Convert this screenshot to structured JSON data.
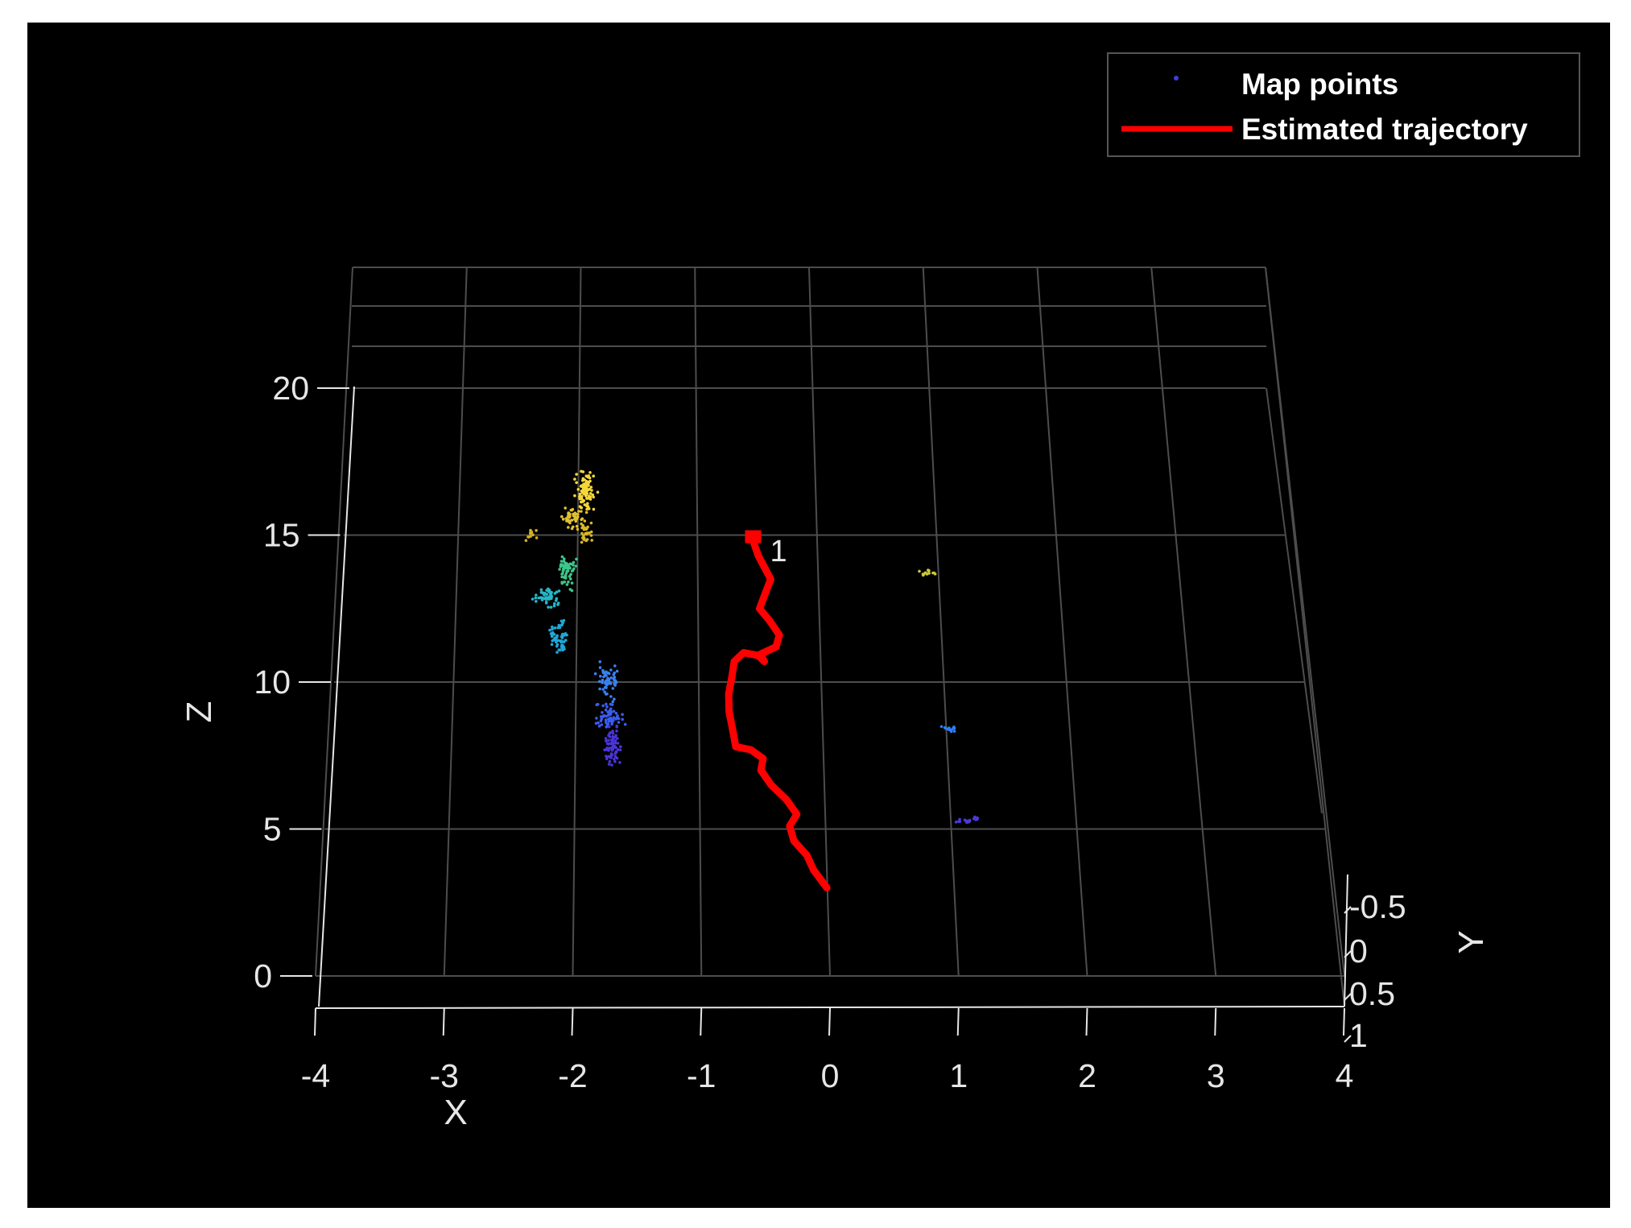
{
  "figure": {
    "background": "#000000",
    "outer_background": "#ffffff",
    "grid_color": "#4d4d4d",
    "axis_color": "#e6e6e6"
  },
  "chart_data": {
    "type": "scatter",
    "view": "3d",
    "title": "",
    "xlabel": "X",
    "ylabel": "Y",
    "zlabel": "Z",
    "xlim": [
      -4,
      4
    ],
    "ylim": [
      -0.75,
      1
    ],
    "zlim": [
      0,
      23
    ],
    "x_ticks": [
      -4,
      -3,
      -2,
      -1,
      0,
      1,
      2,
      3,
      4
    ],
    "y_ticks": [
      "-0.5",
      "0",
      "0.5",
      "1"
    ],
    "z_ticks": [
      0,
      5,
      10,
      15,
      20
    ],
    "grid": true,
    "legend": {
      "placement": "top-right",
      "entries": [
        {
          "label": "Map points",
          "style": "marker",
          "color": "#3d3de0"
        },
        {
          "label": "Estimated trajectory",
          "style": "line",
          "color": "#ff0000"
        }
      ]
    },
    "colormap": "parula",
    "annotations": [
      {
        "text": "1",
        "x": -0.42,
        "z": 14.6,
        "color": "#ff0000"
      }
    ],
    "series": [
      {
        "name": "Estimated trajectory",
        "type": "line",
        "color": "#ff0000",
        "points": [
          {
            "x": 0.0,
            "z": 3.0
          },
          {
            "x": -0.1,
            "z": 3.6
          },
          {
            "x": -0.15,
            "z": 4.1
          },
          {
            "x": -0.25,
            "z": 4.6
          },
          {
            "x": -0.28,
            "z": 5.1
          },
          {
            "x": -0.22,
            "z": 5.5
          },
          {
            "x": -0.3,
            "z": 6.0
          },
          {
            "x": -0.42,
            "z": 6.5
          },
          {
            "x": -0.5,
            "z": 7.0
          },
          {
            "x": -0.48,
            "z": 7.4
          },
          {
            "x": -0.58,
            "z": 7.7
          },
          {
            "x": -0.7,
            "z": 7.8
          },
          {
            "x": -0.72,
            "z": 8.3
          },
          {
            "x": -0.75,
            "z": 9.0
          },
          {
            "x": -0.75,
            "z": 9.6
          },
          {
            "x": -0.72,
            "z": 10.2
          },
          {
            "x": -0.7,
            "z": 10.7
          },
          {
            "x": -0.62,
            "z": 11.0
          },
          {
            "x": -0.5,
            "z": 10.9
          },
          {
            "x": -0.45,
            "z": 10.7
          },
          {
            "x": -0.48,
            "z": 10.95
          },
          {
            "x": -0.35,
            "z": 11.2
          },
          {
            "x": -0.32,
            "z": 11.6
          },
          {
            "x": -0.4,
            "z": 12.1
          },
          {
            "x": -0.48,
            "z": 12.5
          },
          {
            "x": -0.43,
            "z": 13.0
          },
          {
            "x": -0.38,
            "z": 13.5
          },
          {
            "x": -0.43,
            "z": 13.9
          },
          {
            "x": -0.48,
            "z": 14.3
          },
          {
            "x": -0.52,
            "z": 14.8
          },
          {
            "x": -0.52,
            "z": 15.0
          }
        ]
      },
      {
        "name": "Map points",
        "type": "scatter",
        "clusters": [
          {
            "x": -1.95,
            "z": 16.5,
            "dx": 0.12,
            "dz": 0.9,
            "n": 90,
            "color": "#f5d83a"
          },
          {
            "x": -2.05,
            "z": 15.6,
            "dx": 0.15,
            "dz": 0.4,
            "n": 50,
            "color": "#e0c030"
          },
          {
            "x": -1.95,
            "z": 15.1,
            "dx": 0.08,
            "dz": 0.5,
            "n": 30,
            "color": "#d8b828"
          },
          {
            "x": -2.4,
            "z": 15.0,
            "dx": 0.08,
            "dz": 0.3,
            "n": 12,
            "color": "#d0b020"
          },
          {
            "x": -2.1,
            "z": 13.8,
            "dx": 0.1,
            "dz": 0.8,
            "n": 60,
            "color": "#3ec58a"
          },
          {
            "x": -2.25,
            "z": 12.9,
            "dx": 0.15,
            "dz": 0.5,
            "n": 50,
            "color": "#25b6c9"
          },
          {
            "x": -2.15,
            "z": 11.5,
            "dx": 0.1,
            "dz": 0.8,
            "n": 60,
            "color": "#1fa7d8"
          },
          {
            "x": -1.75,
            "z": 10.0,
            "dx": 0.12,
            "dz": 0.8,
            "n": 60,
            "color": "#3a80f0"
          },
          {
            "x": -1.75,
            "z": 8.8,
            "dx": 0.18,
            "dz": 0.6,
            "n": 60,
            "color": "#3a5cf0"
          },
          {
            "x": -1.7,
            "z": 7.8,
            "dx": 0.1,
            "dz": 1.0,
            "n": 70,
            "color": "#4a34d8"
          },
          {
            "x": 0.95,
            "z": 13.7,
            "dx": 0.12,
            "dz": 0.15,
            "n": 14,
            "color": "#c8c83a"
          },
          {
            "x": 1.05,
            "z": 8.4,
            "dx": 0.08,
            "dz": 0.15,
            "n": 14,
            "color": "#2e7ef0"
          },
          {
            "x": 1.15,
            "z": 5.3,
            "dx": 0.12,
            "dz": 0.15,
            "n": 18,
            "color": "#4a3ad8"
          }
        ]
      }
    ]
  }
}
